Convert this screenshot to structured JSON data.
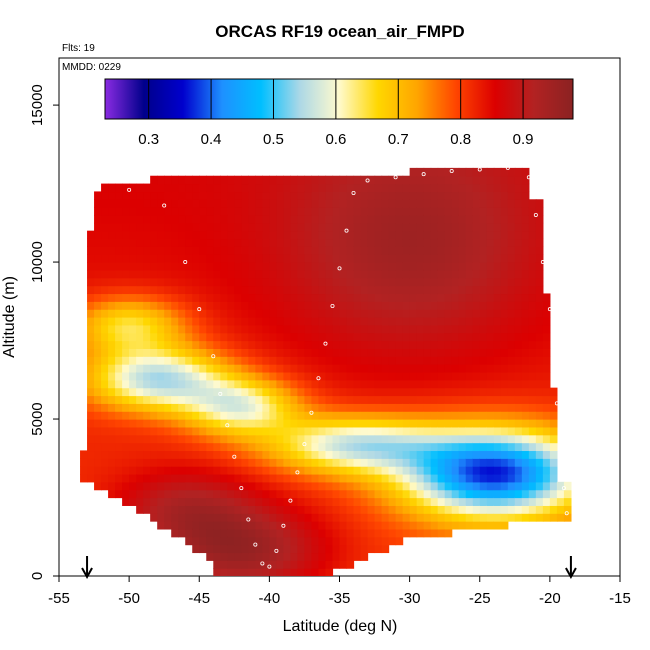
{
  "chart_data": {
    "type": "heatmap",
    "title": "ORCAS RF19 ocean_air_FMPD",
    "annotations": {
      "flights": "Flts: 19",
      "date": "MMDD: 0229"
    },
    "xlabel": "Latitude (deg N)",
    "ylabel": "Altitude (m)",
    "xlim": [
      -55,
      -15
    ],
    "ylim": [
      0,
      16500
    ],
    "x_ticks": [
      -55,
      -50,
      -45,
      -40,
      -35,
      -30,
      -25,
      -20,
      -15
    ],
    "x_tick_labels": [
      "-55",
      "-50",
      "-45",
      "-40",
      "-35",
      "-30",
      "-25",
      "-20",
      "-15"
    ],
    "y_ticks": [
      0,
      5000,
      10000,
      15000
    ],
    "y_tick_labels": [
      "0",
      "5000",
      "10000",
      "15000"
    ],
    "colorbar": {
      "range": [
        0.23,
        0.98
      ],
      "ticks": [
        0.3,
        0.4,
        0.5,
        0.6,
        0.7,
        0.8,
        0.9
      ],
      "tick_labels": [
        "0.3",
        "0.4",
        "0.5",
        "0.6",
        "0.7",
        "0.8",
        "0.9"
      ],
      "colors": [
        "#8a2be2",
        "#00008b",
        "#0000cd",
        "#1e90ff",
        "#00bfff",
        "#add8e6",
        "#fffacd",
        "#ffd700",
        "#ffa500",
        "#ff4500",
        "#dc0000",
        "#b22222",
        "#8b2222"
      ]
    },
    "heatmap_model": {
      "value_range": [
        0.23,
        0.98
      ],
      "latitude_extent": [
        -53,
        -18.5
      ],
      "altitude_extent": [
        0,
        13000
      ],
      "surface": "FMPD value as a function of latitude and altitude",
      "bands": [
        {
          "description": "upper troposphere",
          "value": 0.84
        },
        {
          "description": "core",
          "lat": [
            -40,
            -20
          ],
          "alt": [
            8000,
            13000
          ],
          "value": 0.93
        },
        {
          "description": "low layer",
          "lat": [
            -48,
            -36
          ],
          "alt": [
            0,
            2000
          ],
          "value": 0.96
        },
        {
          "description": "blue tongue",
          "lat": [
            -30,
            -18.5
          ],
          "alt": [
            2000,
            5000
          ],
          "value": 0.4
        },
        {
          "description": "light band",
          "lat": [
            -53,
            -44
          ],
          "alt": [
            5500,
            7500
          ],
          "value": 0.58
        }
      ]
    },
    "markers": {
      "description": "flight track sample points (small white circles)",
      "points": [
        [
          -52.5,
          12500
        ],
        [
          -50,
          12300
        ],
        [
          -47.5,
          11800
        ],
        [
          -46,
          10000
        ],
        [
          -45,
          8500
        ],
        [
          -44,
          7000
        ],
        [
          -43.5,
          5800
        ],
        [
          -43,
          4800
        ],
        [
          -42.5,
          3800
        ],
        [
          -42,
          2800
        ],
        [
          -41.5,
          1800
        ],
        [
          -41,
          1000
        ],
        [
          -40.5,
          400
        ],
        [
          -40,
          300
        ],
        [
          -39.5,
          800
        ],
        [
          -39,
          1600
        ],
        [
          -38.5,
          2400
        ],
        [
          -38,
          3300
        ],
        [
          -37.5,
          4200
        ],
        [
          -37,
          5200
        ],
        [
          -36.5,
          6300
        ],
        [
          -36,
          7400
        ],
        [
          -35.5,
          8600
        ],
        [
          -35,
          9800
        ],
        [
          -34.5,
          11000
        ],
        [
          -34,
          12200
        ],
        [
          -33,
          12600
        ],
        [
          -31,
          12700
        ],
        [
          -29,
          12800
        ],
        [
          -27,
          12900
        ],
        [
          -25,
          12950
        ],
        [
          -23,
          13000
        ],
        [
          -21.5,
          12700
        ],
        [
          -21,
          11500
        ],
        [
          -20.5,
          10000
        ],
        [
          -20,
          8500
        ],
        [
          -19.8,
          7000
        ],
        [
          -19.5,
          5500
        ],
        [
          -19.3,
          4000
        ],
        [
          -19,
          2800
        ],
        [
          -18.8,
          2000
        ],
        [
          -18.6,
          1500
        ]
      ]
    },
    "arrows": [
      {
        "lat": -53,
        "direction": "down"
      },
      {
        "lat": -18.5,
        "direction": "down"
      }
    ]
  }
}
